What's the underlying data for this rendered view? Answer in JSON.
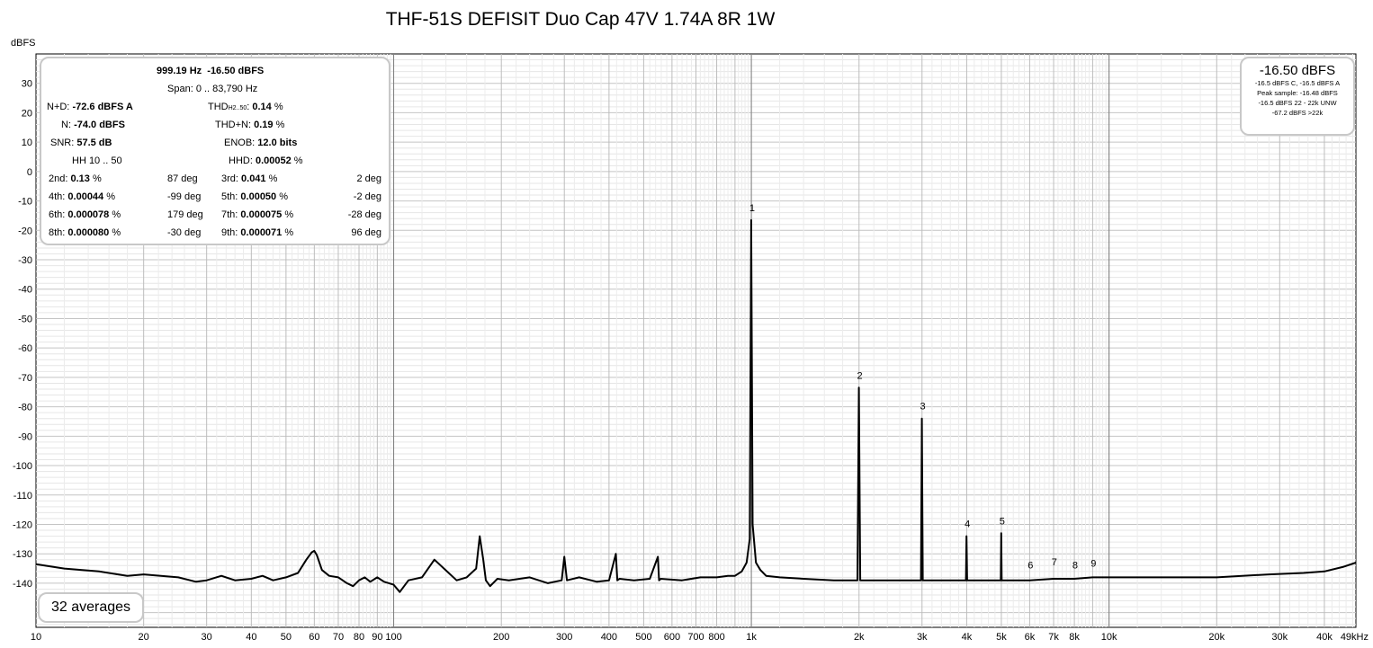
{
  "chart_data": {
    "type": "line",
    "title": "THF-51S DEFISIT Duo Cap 47V 1.74A 8R 1W",
    "ylabel": "dBFS",
    "xlabel": "",
    "x_scale": "log",
    "xlim": [
      10,
      49000
    ],
    "ylim": [
      -155,
      40
    ],
    "x_ticks": [
      10,
      20,
      30,
      40,
      50,
      60,
      70,
      80,
      90,
      100,
      200,
      300,
      400,
      500,
      600,
      700,
      800,
      1000,
      2000,
      3000,
      4000,
      5000,
      6000,
      7000,
      8000,
      10000,
      20000,
      30000,
      40000,
      49000
    ],
    "x_tick_labels": [
      "10",
      "20",
      "30",
      "40",
      "50",
      "60",
      "70",
      "80",
      "90",
      "100",
      "200",
      "300",
      "400",
      "500",
      "600",
      "700",
      "800",
      "1k",
      "2k",
      "3k",
      "4k",
      "5k",
      "6k",
      "7k",
      "8k",
      "10k",
      "20k",
      "30k",
      "40k",
      "49kHz"
    ],
    "y_ticks": [
      30,
      20,
      10,
      0,
      -10,
      -20,
      -30,
      -40,
      -50,
      -60,
      -70,
      -80,
      -90,
      -100,
      -110,
      -120,
      -130,
      -140
    ],
    "grid": true,
    "series": [
      {
        "name": "",
        "x": [
          10,
          12,
          15,
          18,
          20,
          25,
          28,
          30,
          33,
          36,
          40,
          43,
          46,
          50,
          54,
          57,
          59,
          60,
          61,
          63,
          66,
          70,
          74,
          77,
          80,
          83,
          86,
          90,
          94,
          97,
          100,
          104,
          110,
          120,
          130,
          150,
          160,
          170,
          174,
          178,
          181,
          186,
          195,
          210,
          240,
          270,
          295,
          300,
          305,
          330,
          370,
          400,
          418,
          422,
          428,
          470,
          520,
          548,
          552,
          558,
          640,
          720,
          800,
          860,
          900,
          940,
          970,
          990,
          999,
          1008,
          1030,
          1060,
          1100,
          1200,
          1400,
          1700,
          1900,
          1980,
          1998,
          2016,
          2200,
          2600,
          2980,
          2997,
          3015,
          3300,
          3700,
          3980,
          3996,
          4012,
          4500,
          4980,
          4995,
          5010,
          6000,
          7000,
          8000,
          9000,
          10000,
          14000,
          20000,
          28000,
          35000,
          40000,
          45000,
          49000
        ],
        "y": [
          -133.5,
          -135,
          -136,
          -137.5,
          -137,
          -138,
          -139.5,
          -139,
          -137.5,
          -139,
          -138.5,
          -137.5,
          -139,
          -138,
          -136.5,
          -132,
          -129.5,
          -129,
          -130.5,
          -135.5,
          -137.5,
          -138,
          -140,
          -141,
          -139,
          -138,
          -139.5,
          -138,
          -139.5,
          -140,
          -140.5,
          -143,
          -139,
          -138,
          -132,
          -139,
          -138,
          -135,
          -124,
          -132,
          -139,
          -141,
          -138.5,
          -139,
          -138,
          -140,
          -139,
          -131,
          -139,
          -138,
          -139.5,
          -139,
          -130,
          -139,
          -138.5,
          -139,
          -138.5,
          -131,
          -139,
          -138.5,
          -139,
          -138,
          -138,
          -137.5,
          -137.5,
          -136,
          -133,
          -125,
          -16.5,
          -120,
          -133,
          -135.5,
          -137.5,
          -138,
          -138.5,
          -139,
          -139,
          -139,
          -73.5,
          -139,
          -139,
          -139,
          -139,
          -84,
          -139,
          -139,
          -139,
          -139,
          -124,
          -139,
          -139,
          -139,
          -123,
          -139,
          -139,
          -138.5,
          -138.5,
          -138,
          -138,
          -138,
          -138,
          -137,
          -136.5,
          -136,
          -134.5,
          -133
        ]
      }
    ],
    "annotations": [
      {
        "label": "1",
        "x": 999,
        "y": -16.5
      },
      {
        "label": "2",
        "x": 1998,
        "y": -73.5
      },
      {
        "label": "3",
        "x": 2997,
        "y": -84
      },
      {
        "label": "4",
        "x": 3996,
        "y": -124
      },
      {
        "label": "5",
        "x": 4995,
        "y": -123
      },
      {
        "label": "6",
        "x": 5994,
        "y": -138
      },
      {
        "label": "7",
        "x": 6993,
        "y": -137
      },
      {
        "label": "8",
        "x": 7992,
        "y": -138
      },
      {
        "label": "9",
        "x": 8991,
        "y": -137.5
      }
    ]
  },
  "stats": {
    "peak_freq": "999.19 Hz",
    "peak_level": "-16.50 dBFS",
    "span_label": "Span:",
    "span_value": "0 .. 83,790 Hz",
    "nd_label": "N+D:",
    "nd_value": "-72.6 dBFS A",
    "thd_label": "THD",
    "thd_sub": "H2..50",
    "thd_colon": ":",
    "thd_value": "0.14",
    "thd_unit": "%",
    "n_label": "N:",
    "n_value": "-74.0 dBFS",
    "thdn_label": "THD+N:",
    "thdn_value": "0.19",
    "thdn_unit": "%",
    "snr_label": "SNR:",
    "snr_value": "57.5 dB",
    "enob_label": "ENOB:",
    "enob_value": "12.0 bits",
    "hh_label": "HH 10 .. 50",
    "hhd_label": "HHD:",
    "hhd_value": "0.00052",
    "hhd_unit": "%",
    "harmonics": [
      {
        "label": "2nd:",
        "value": "0.13",
        "unit": "%",
        "phase": "87 deg"
      },
      {
        "label": "3rd:",
        "value": "0.041",
        "unit": "%",
        "phase": "2 deg"
      },
      {
        "label": "4th:",
        "value": "0.00044",
        "unit": "%",
        "phase": "-99 deg"
      },
      {
        "label": "5th:",
        "value": "0.00050",
        "unit": "%",
        "phase": "-2 deg"
      },
      {
        "label": "6th:",
        "value": "0.000078",
        "unit": "%",
        "phase": "179 deg"
      },
      {
        "label": "7th:",
        "value": "0.000075",
        "unit": "%",
        "phase": "-28 deg"
      },
      {
        "label": "8th:",
        "value": "0.000080",
        "unit": "%",
        "phase": "-30 deg"
      },
      {
        "label": "9th:",
        "value": "0.000071",
        "unit": "%",
        "phase": "96 deg"
      }
    ]
  },
  "peak_box": {
    "level": "-16.50 dBFS",
    "lines": [
      "-16.5 dBFS C, -16.5 dBFS A",
      "Peak sample: -16.48 dBFS",
      "-16.5 dBFS 22 - 22k UNW",
      "-67.2 dBFS >22k"
    ]
  },
  "averages": "32 averages"
}
